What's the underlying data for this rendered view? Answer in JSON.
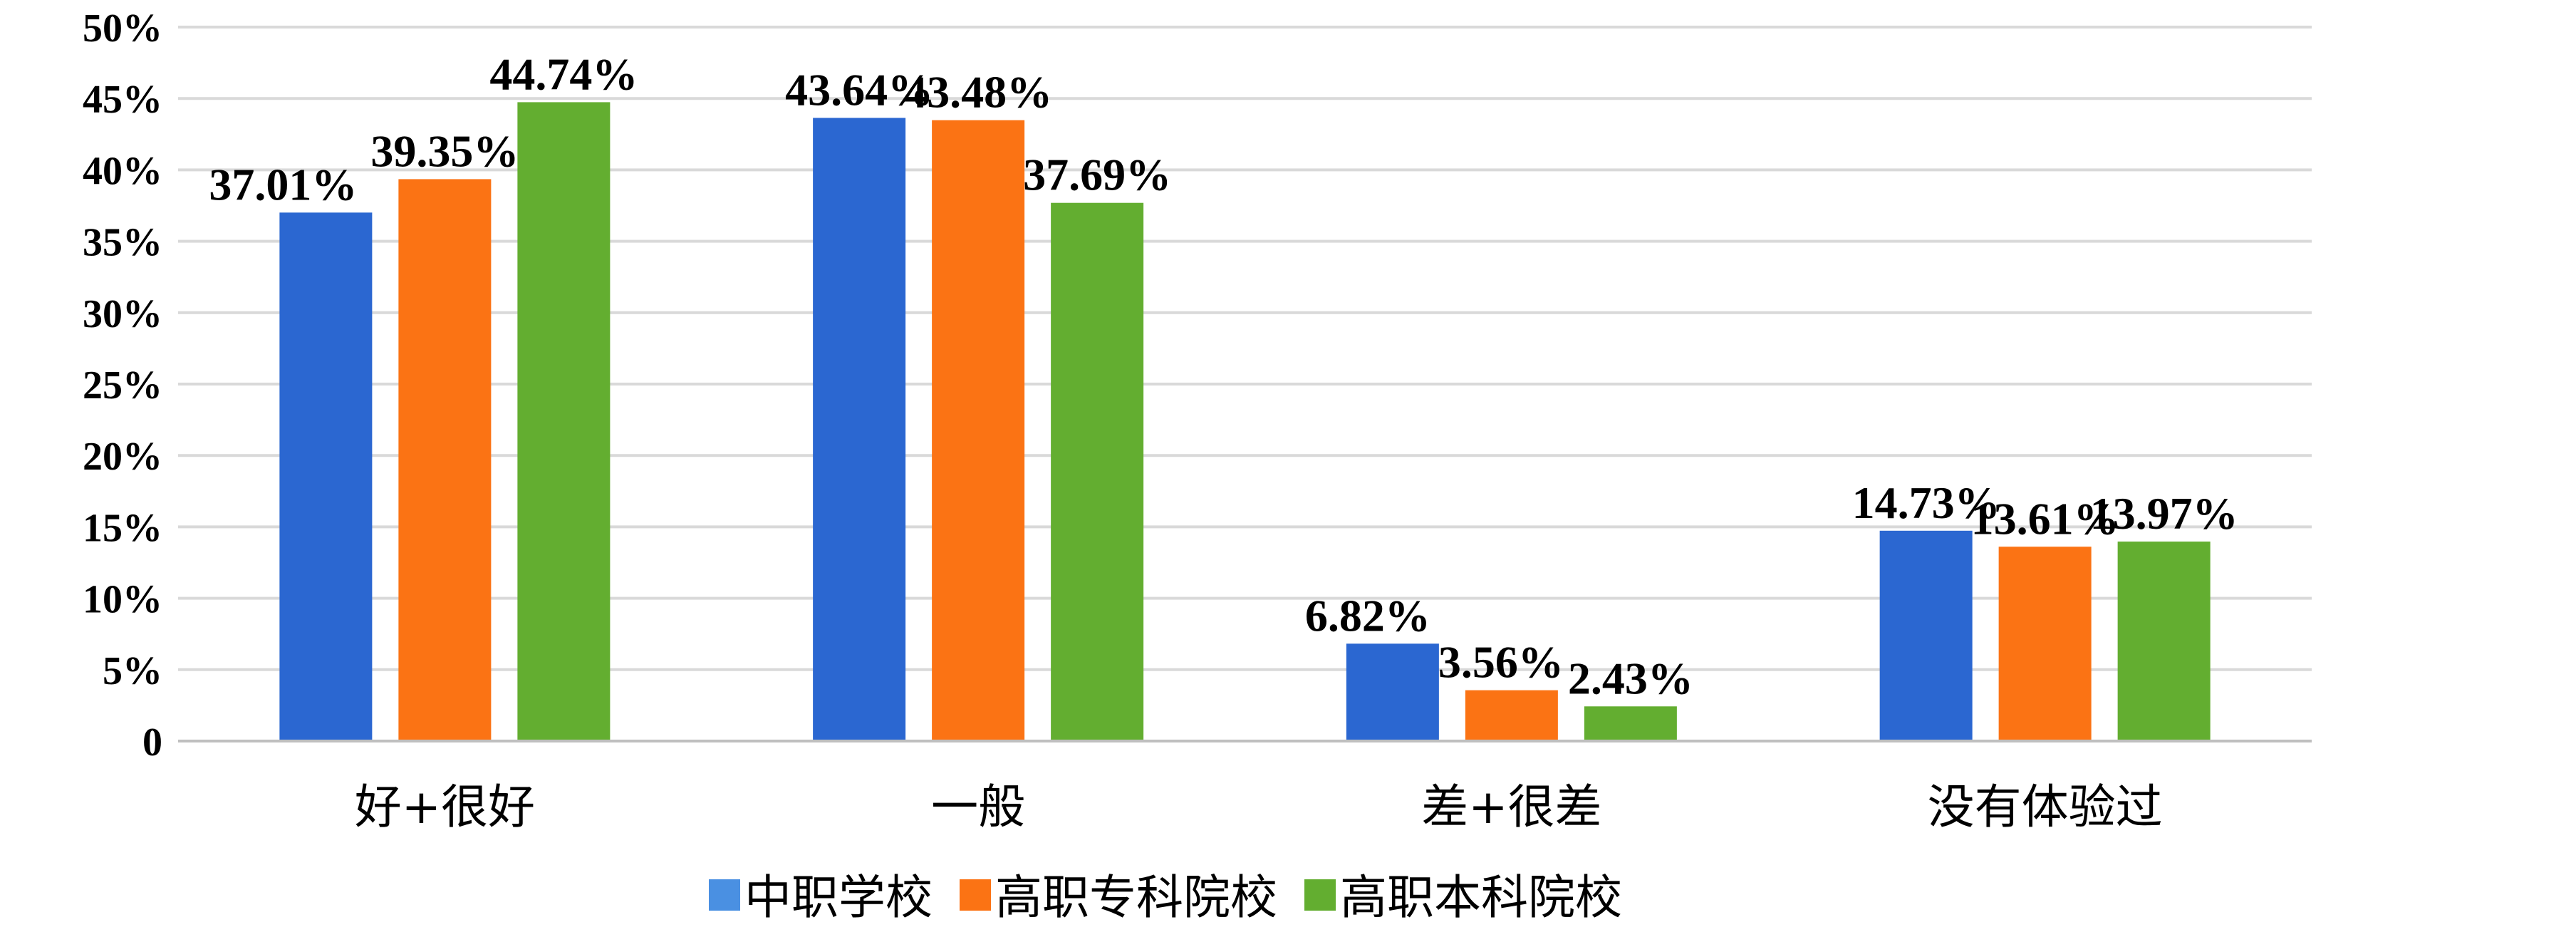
{
  "chart_data": {
    "type": "bar",
    "categories": [
      "好+很好",
      "一般",
      "差+很差",
      "没有体验过"
    ],
    "series": [
      {
        "name": "中职学校",
        "values": [
          37.01,
          43.64,
          6.82,
          14.73
        ],
        "labels": [
          "37.01%",
          "43.64%",
          "6.82%",
          "14.73%"
        ],
        "color": "#2b67d1"
      },
      {
        "name": "高职专科院校",
        "values": [
          39.35,
          43.48,
          3.56,
          13.61
        ],
        "labels": [
          "39.35%",
          "43.48%",
          "3.56%",
          "13.61%"
        ],
        "color": "#fb7314"
      },
      {
        "name": "高职本科院校",
        "values": [
          44.74,
          37.69,
          2.43,
          13.97
        ],
        "labels": [
          "44.74%",
          "37.69%",
          "2.43%",
          "13.97%"
        ],
        "color": "#63ae30"
      }
    ],
    "legend_colors": [
      "#4a90e2",
      "#fb7314",
      "#63ae30"
    ],
    "yticks": [
      "0",
      "5%",
      "10%",
      "15%",
      "20%",
      "25%",
      "30%",
      "35%",
      "40%",
      "45%",
      "50%"
    ],
    "ylim": [
      0,
      50
    ],
    "grid": true,
    "legend_position": "bottom",
    "gridline_color": "#d9d9d9",
    "axis_color": "#bfbfbf"
  }
}
